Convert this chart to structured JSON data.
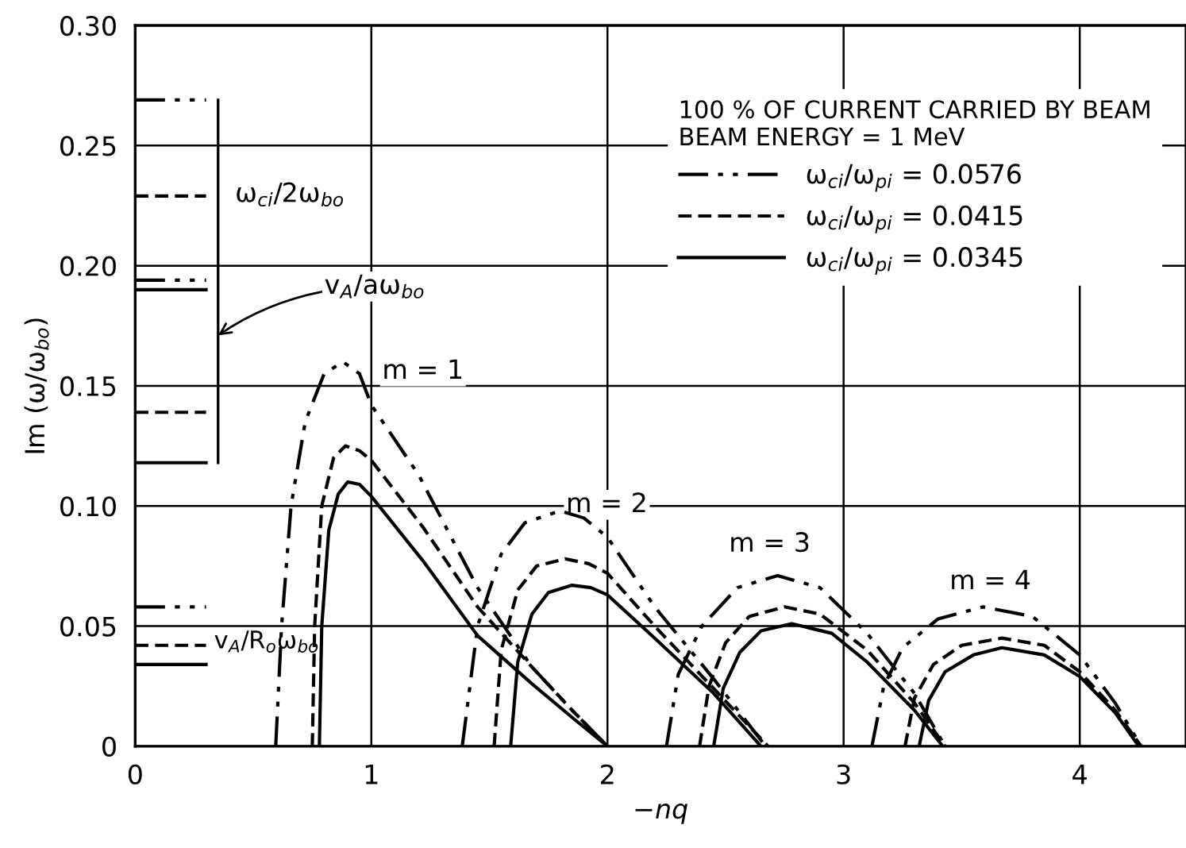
{
  "chart_data": {
    "type": "line",
    "xlabel": "−nq",
    "ylabel": "Im (ω/ω$_{bo}$)",
    "legend_title": "100 % OF CURRENT CARRIED BY BEAM\nBEAM ENERGY = 1 MeV",
    "legend": "top right",
    "grid": true,
    "marker": "none",
    "xlim": [
      0,
      4.45
    ],
    "ylim": [
      0,
      0.3
    ],
    "xticks": [
      0,
      1,
      2,
      3,
      4
    ],
    "yticks": [
      {
        "value": 0,
        "label": "0"
      },
      {
        "value": 0.05,
        "label": "0.05"
      },
      {
        "value": 0.1,
        "label": "0.10"
      },
      {
        "value": 0.15,
        "label": "0.15"
      },
      {
        "value": 0.2,
        "label": "0.20"
      },
      {
        "value": 0.25,
        "label": "0.25"
      },
      {
        "value": 0.3,
        "label": "0.30"
      }
    ],
    "series": [
      {
        "name": "ω$_{ci}$/ω$_{pi}$ = 0.0576",
        "color": "#000000",
        "line_style": "dashdot",
        "x": [
          0.595,
          0.62,
          0.66,
          0.72,
          0.8,
          0.88,
          0.95,
          1.0,
          1.2,
          1.45,
          1.68,
          1.85,
          2.0
        ],
        "values": [
          0,
          0.05,
          0.1,
          0.135,
          0.155,
          0.16,
          0.155,
          0.142,
          0.113,
          0.066,
          0.033,
          0.015,
          0
        ]
      },
      {
        "name": "ω$_{ci}$/ω$_{pi}$ = 0.0415",
        "color": "#000000",
        "line_style": "dashed",
        "x": [
          0.75,
          0.76,
          0.79,
          0.84,
          0.89,
          0.95,
          1.0,
          1.22,
          1.45,
          1.68,
          1.85,
          2.0
        ],
        "values": [
          0,
          0.05,
          0.1,
          0.12,
          0.125,
          0.123,
          0.119,
          0.091,
          0.058,
          0.033,
          0.015,
          0
        ]
      },
      {
        "name": "ω$_{ci}$/ω$_{pi}$ = 0.0345",
        "color": "#000000",
        "line_style": "solid",
        "x": [
          0.78,
          0.79,
          0.82,
          0.86,
          0.9,
          0.95,
          1.0,
          1.22,
          1.45,
          1.68,
          1.85,
          2.0
        ],
        "values": [
          0,
          0.05,
          0.09,
          0.105,
          0.11,
          0.109,
          0.104,
          0.077,
          0.046,
          0.026,
          0.012,
          0
        ]
      },
      {
        "color": "#000000",
        "line_style": "dashdot",
        "x": [
          1.385,
          1.45,
          1.55,
          1.65,
          1.8,
          1.9,
          2.0,
          2.2,
          2.45,
          2.67
        ],
        "values": [
          0,
          0.05,
          0.08,
          0.093,
          0.098,
          0.095,
          0.087,
          0.058,
          0.028,
          0
        ]
      },
      {
        "color": "#000000",
        "line_style": "dashed",
        "x": [
          1.52,
          1.55,
          1.62,
          1.7,
          1.82,
          1.92,
          2.0,
          2.2,
          2.45,
          2.68
        ],
        "values": [
          0,
          0.04,
          0.065,
          0.075,
          0.078,
          0.076,
          0.072,
          0.05,
          0.024,
          0
        ]
      },
      {
        "color": "#000000",
        "line_style": "solid",
        "x": [
          1.59,
          1.62,
          1.68,
          1.75,
          1.85,
          1.93,
          2.0,
          2.2,
          2.45,
          2.65
        ],
        "values": [
          0,
          0.035,
          0.055,
          0.064,
          0.067,
          0.066,
          0.063,
          0.045,
          0.022,
          0
        ]
      },
      {
        "color": "#000000",
        "line_style": "dashdot",
        "x": [
          2.25,
          2.3,
          2.4,
          2.55,
          2.72,
          2.9,
          3.1,
          3.3,
          3.43
        ],
        "values": [
          0,
          0.03,
          0.05,
          0.066,
          0.071,
          0.066,
          0.047,
          0.022,
          0
        ]
      },
      {
        "color": "#000000",
        "line_style": "dashed",
        "x": [
          2.39,
          2.43,
          2.5,
          2.6,
          2.75,
          2.9,
          3.1,
          3.3,
          3.43
        ],
        "values": [
          0,
          0.025,
          0.043,
          0.054,
          0.058,
          0.055,
          0.04,
          0.018,
          0
        ]
      },
      {
        "color": "#000000",
        "line_style": "solid",
        "x": [
          2.45,
          2.49,
          2.56,
          2.65,
          2.78,
          2.95,
          3.1,
          3.3,
          3.42
        ],
        "values": [
          0,
          0.024,
          0.039,
          0.048,
          0.051,
          0.047,
          0.035,
          0.015,
          0
        ]
      },
      {
        "color": "#000000",
        "line_style": "dashdot",
        "x": [
          3.12,
          3.17,
          3.25,
          3.4,
          3.59,
          3.8,
          4.0,
          4.15,
          4.26
        ],
        "values": [
          0,
          0.025,
          0.041,
          0.053,
          0.058,
          0.054,
          0.038,
          0.018,
          0
        ]
      },
      {
        "color": "#000000",
        "line_style": "dashed",
        "x": [
          3.26,
          3.3,
          3.38,
          3.5,
          3.67,
          3.85,
          4.0,
          4.15,
          4.26
        ],
        "values": [
          0,
          0.02,
          0.034,
          0.042,
          0.045,
          0.042,
          0.031,
          0.015,
          0
        ]
      },
      {
        "color": "#000000",
        "line_style": "solid",
        "x": [
          3.32,
          3.36,
          3.43,
          3.55,
          3.67,
          3.85,
          4.0,
          4.15,
          4.25
        ],
        "values": [
          0,
          0.019,
          0.031,
          0.038,
          0.041,
          0.038,
          0.029,
          0.014,
          0
        ]
      },
      {
        "color": "#000000",
        "line_style": "dashdot",
        "x": [
          0,
          0.3
        ],
        "values": [
          0.269,
          0.269
        ]
      },
      {
        "color": "#000000",
        "line_style": "dashed",
        "x": [
          0,
          0.3
        ],
        "values": [
          0.229,
          0.229
        ]
      },
      {
        "color": "#000000",
        "line_style": "dashdot",
        "x": [
          0,
          0.3
        ],
        "values": [
          0.194,
          0.194
        ]
      },
      {
        "color": "#000000",
        "line_style": "solid",
        "x": [
          0,
          0.3
        ],
        "values": [
          0.19,
          0.19
        ]
      },
      {
        "color": "#000000",
        "line_style": "dashed",
        "x": [
          0,
          0.3
        ],
        "values": [
          0.139,
          0.139
        ]
      },
      {
        "color": "#000000",
        "line_style": "solid",
        "x": [
          0,
          0.3
        ],
        "values": [
          0.118,
          0.118
        ]
      },
      {
        "color": "#000000",
        "line_style": "dashdot",
        "x": [
          0,
          0.3
        ],
        "values": [
          0.058,
          0.058
        ]
      },
      {
        "color": "#000000",
        "line_style": "dashed",
        "x": [
          0,
          0.3
        ],
        "values": [
          0.042,
          0.042
        ]
      },
      {
        "color": "#000000",
        "line_style": "solid",
        "x": [
          0,
          0.3
        ],
        "values": [
          0.034,
          0.034
        ]
      }
    ],
    "annotations": [
      "ω$_{ci}$/2ω$_{bo}$",
      "v$_{A}$/aω$_{bo}$",
      "v$_{A}$/R$_{o}$ω$_{bo}$",
      "m = 1",
      "m = 2",
      "m = 3",
      "m = 4"
    ]
  }
}
